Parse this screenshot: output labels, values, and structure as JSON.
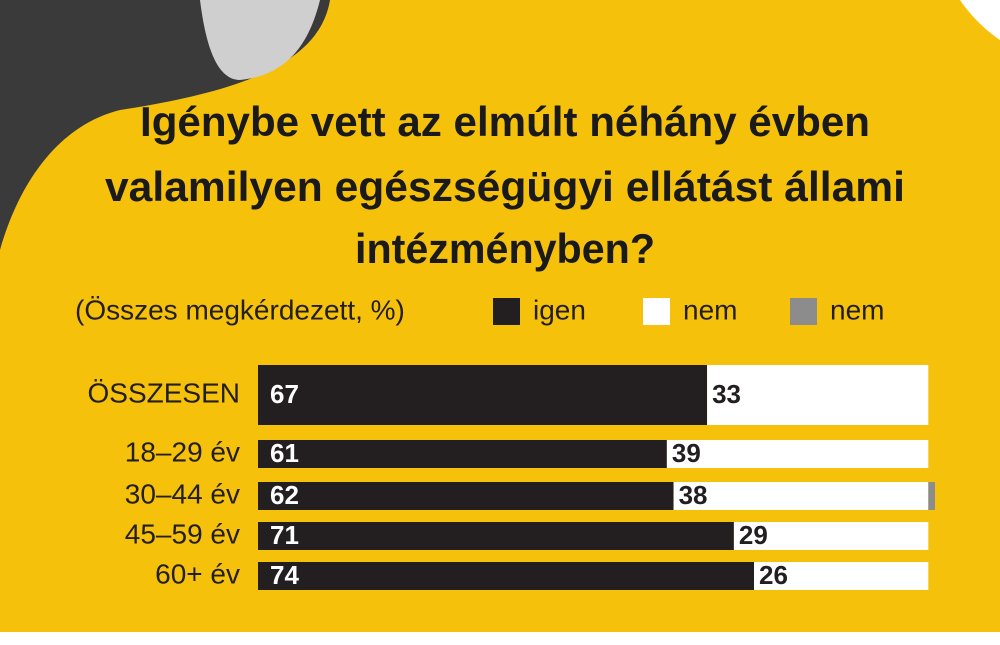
{
  "chart_data": {
    "type": "stacked-bar-horizontal",
    "title": [
      "Igénybe vett az elmúlt néhány évben",
      "valamilyen egészségügyi ellátást állami",
      "intézményben?"
    ],
    "subtitle": "(Összes megkérdezett, %)",
    "categories": [
      "ÖSSZESEN",
      "18–29 év",
      "30–44 év",
      "45–59 év",
      "60+ év"
    ],
    "series": [
      {
        "name": "igen",
        "color": "#231f20",
        "values": [
          67,
          61,
          62,
          71,
          74
        ]
      },
      {
        "name": "nem",
        "color": "#ffffff",
        "values": [
          33,
          39,
          38,
          29,
          26
        ]
      },
      {
        "name": "nem",
        "color": "#8c8c8c",
        "values": [
          0,
          0,
          1,
          0,
          0
        ]
      }
    ],
    "xlim": [
      0,
      101
    ]
  }
}
